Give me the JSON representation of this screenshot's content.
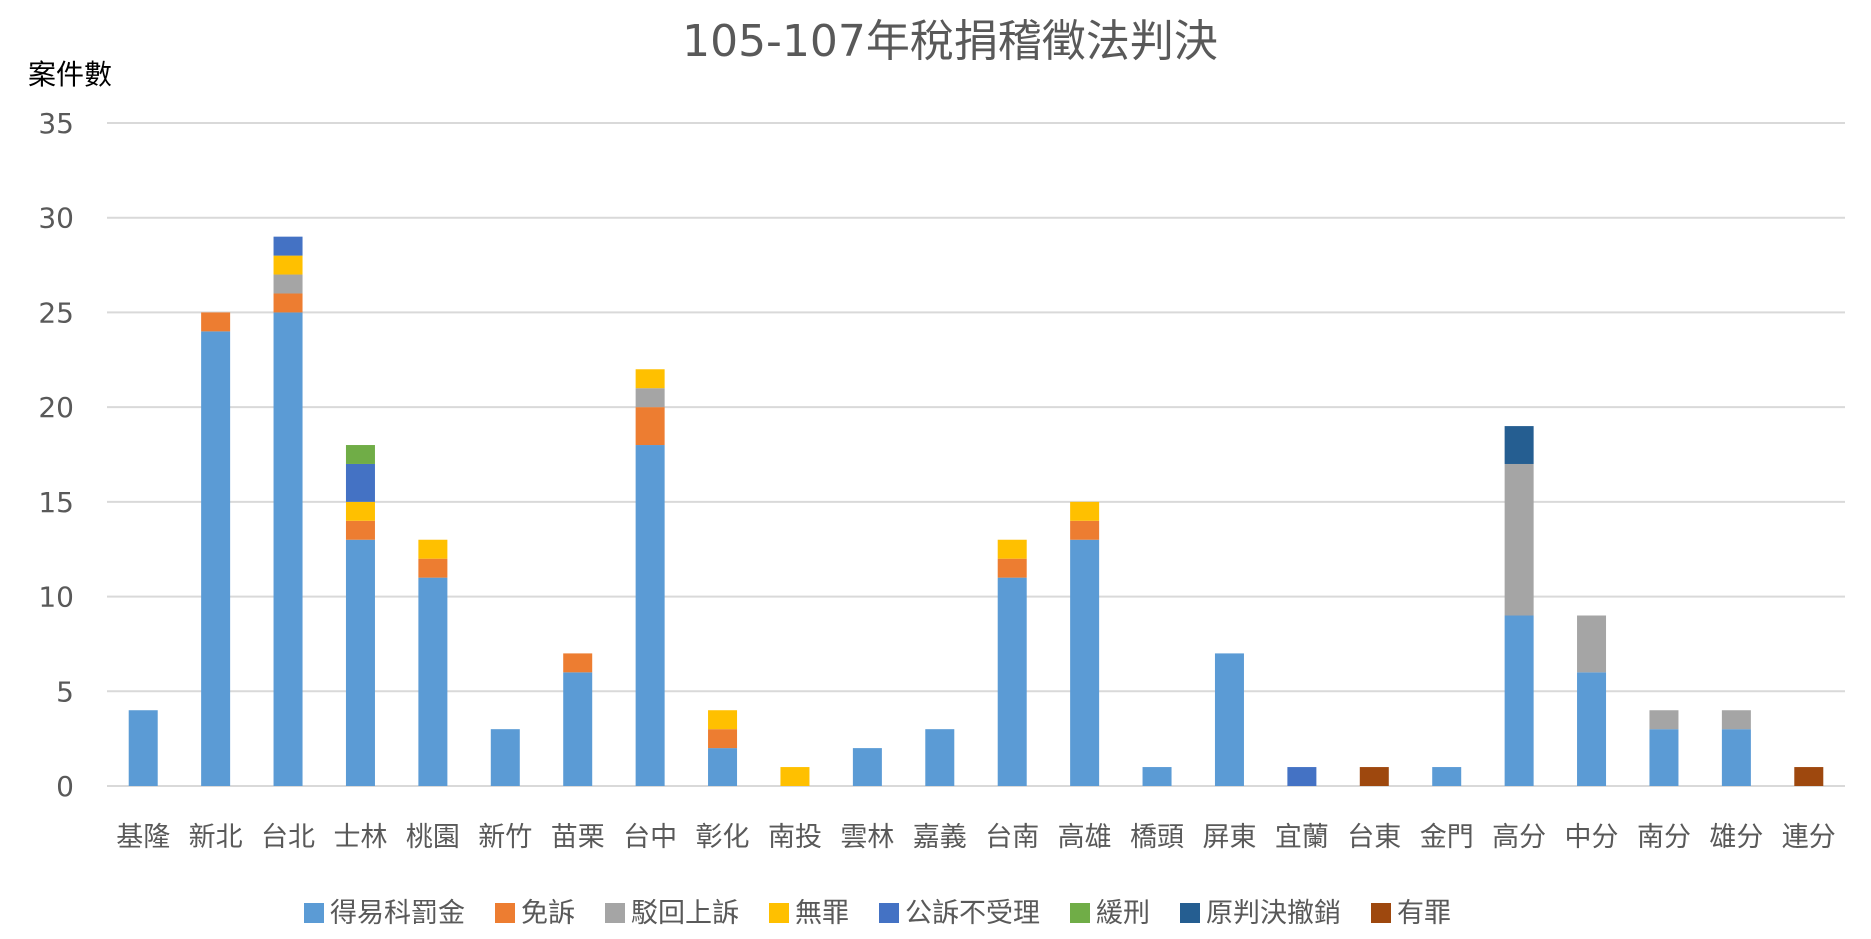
{
  "chart_data": {
    "type": "bar",
    "stacked": true,
    "title": "105-107年稅捐稽徵法判決",
    "ylabel": "案件數",
    "xlabel": "",
    "ylim": [
      0,
      35
    ],
    "yticks": [
      0,
      5,
      10,
      15,
      20,
      25,
      30,
      35
    ],
    "grid": true,
    "legend_position": "bottom",
    "categories": [
      "基隆",
      "新北",
      "台北",
      "士林",
      "桃園",
      "新竹",
      "苗栗",
      "台中",
      "彰化",
      "南投",
      "雲林",
      "嘉義",
      "台南",
      "高雄",
      "橋頭",
      "屏東",
      "宜蘭",
      "台東",
      "金門",
      "高分",
      "中分",
      "南分",
      "雄分",
      "連分"
    ],
    "series": [
      {
        "name": "得易科罰金",
        "color": "#5b9bd5",
        "values": [
          4,
          24,
          25,
          13,
          11,
          3,
          6,
          18,
          2,
          0,
          2,
          3,
          11,
          13,
          1,
          7,
          0,
          0,
          1,
          9,
          6,
          3,
          3,
          0
        ]
      },
      {
        "name": "免訴",
        "color": "#ed7d31",
        "values": [
          0,
          1,
          1,
          1,
          1,
          0,
          1,
          2,
          1,
          0,
          0,
          0,
          1,
          1,
          0,
          0,
          0,
          0,
          0,
          0,
          0,
          0,
          0,
          0
        ]
      },
      {
        "name": "駁回上訴",
        "color": "#a5a5a5",
        "values": [
          0,
          0,
          1,
          0,
          0,
          0,
          0,
          1,
          0,
          0,
          0,
          0,
          0,
          0,
          0,
          0,
          0,
          0,
          0,
          8,
          3,
          1,
          1,
          0
        ]
      },
      {
        "name": "無罪",
        "color": "#ffc000",
        "values": [
          0,
          0,
          1,
          1,
          1,
          0,
          0,
          1,
          1,
          1,
          0,
          0,
          1,
          1,
          0,
          0,
          0,
          0,
          0,
          0,
          0,
          0,
          0,
          0
        ]
      },
      {
        "name": "公訴不受理",
        "color": "#4472c4",
        "values": [
          0,
          0,
          1,
          2,
          0,
          0,
          0,
          0,
          0,
          0,
          0,
          0,
          0,
          0,
          0,
          0,
          1,
          0,
          0,
          0,
          0,
          0,
          0,
          0
        ]
      },
      {
        "name": "緩刑",
        "color": "#70ad47",
        "values": [
          0,
          0,
          0,
          1,
          0,
          0,
          0,
          0,
          0,
          0,
          0,
          0,
          0,
          0,
          0,
          0,
          0,
          0,
          0,
          0,
          0,
          0,
          0,
          0
        ]
      },
      {
        "name": "原判決撤銷",
        "color": "#255e91",
        "values": [
          0,
          0,
          0,
          0,
          0,
          0,
          0,
          0,
          0,
          0,
          0,
          0,
          0,
          0,
          0,
          0,
          0,
          0,
          0,
          2,
          0,
          0,
          0,
          0
        ]
      },
      {
        "name": "有罪",
        "color": "#9e480e",
        "values": [
          0,
          0,
          0,
          0,
          0,
          0,
          0,
          0,
          0,
          0,
          0,
          0,
          0,
          0,
          0,
          0,
          0,
          1,
          0,
          0,
          0,
          0,
          0,
          1
        ]
      }
    ]
  }
}
